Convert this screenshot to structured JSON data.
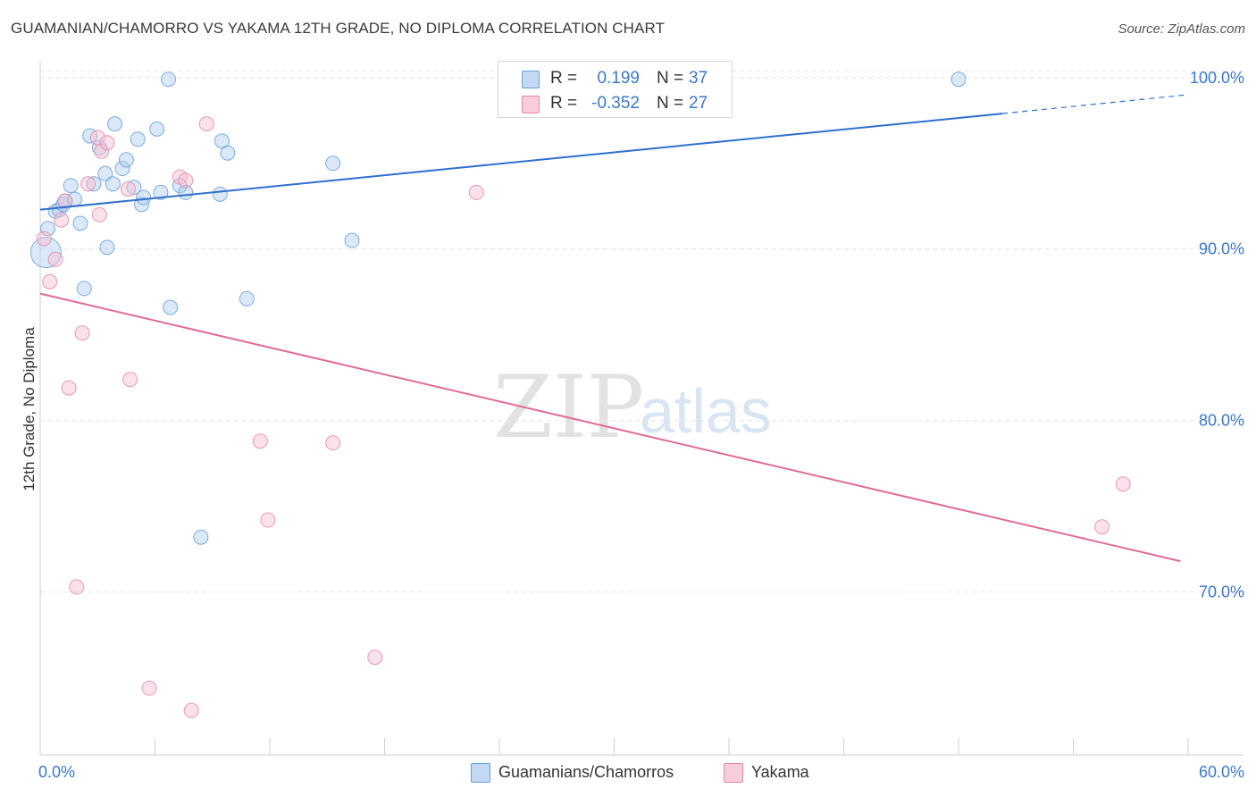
{
  "header": {
    "title": "GUAMANIAN/CHAMORRO VS YAKAMA 12TH GRADE, NO DIPLOMA CORRELATION CHART",
    "source": "Source: ZipAtlas.com"
  },
  "watermark": {
    "zip": "ZIP",
    "atlas": "atlas"
  },
  "legend": {
    "rows": [
      {
        "r_label": "R =",
        "r_value": "0.199",
        "n_label": "N =",
        "n_value": "37",
        "color": "#6a9fdc"
      },
      {
        "r_label": "R =",
        "r_value": "-0.352",
        "n_label": "N =",
        "n_value": "27",
        "color": "#e589a8"
      }
    ]
  },
  "bottom_legend": [
    {
      "label": "Guamanians/Chamorros",
      "color": "#6a9fdc"
    },
    {
      "label": "Yakama",
      "color": "#e589a8"
    }
  ],
  "chart_data": {
    "type": "scatter",
    "title": "GUAMANIAN/CHAMORRO VS YAKAMA 12TH GRADE, NO DIPLOMA CORRELATION CHART",
    "xlabel": "",
    "ylabel": "12th Grade, No Diploma",
    "xlim": [
      0,
      60
    ],
    "ylim": [
      60.5,
      101.5
    ],
    "x_tick_labels": [
      "0.0%",
      "60.0%"
    ],
    "y_ticks": [
      70,
      80,
      90,
      100
    ],
    "y_tick_labels": [
      "70.0%",
      "80.0%",
      "90.0%",
      "100.0%"
    ],
    "grid": true,
    "legend_position": "top-center",
    "series": [
      {
        "name": "Guamanians/Chamorros",
        "color": "#6a9fdc",
        "trend": {
          "x": [
            0,
            50.3
          ],
          "y": [
            92.3,
            97.9
          ],
          "dashed_to": [
            60,
            99.0
          ]
        },
        "points": [
          {
            "x": 0.3,
            "y": 89.8,
            "big": true
          },
          {
            "x": 0.4,
            "y": 91.2
          },
          {
            "x": 0.8,
            "y": 92.2
          },
          {
            "x": 1.0,
            "y": 92.3
          },
          {
            "x": 1.2,
            "y": 92.6
          },
          {
            "x": 1.3,
            "y": 92.8
          },
          {
            "x": 1.6,
            "y": 93.7
          },
          {
            "x": 1.8,
            "y": 92.9
          },
          {
            "x": 2.1,
            "y": 91.5
          },
          {
            "x": 2.3,
            "y": 87.7
          },
          {
            "x": 2.6,
            "y": 96.6
          },
          {
            "x": 2.8,
            "y": 93.8
          },
          {
            "x": 3.1,
            "y": 95.9
          },
          {
            "x": 3.4,
            "y": 94.4
          },
          {
            "x": 3.5,
            "y": 90.1
          },
          {
            "x": 3.8,
            "y": 93.8
          },
          {
            "x": 3.9,
            "y": 97.3
          },
          {
            "x": 4.3,
            "y": 94.7
          },
          {
            "x": 4.5,
            "y": 95.2
          },
          {
            "x": 4.9,
            "y": 93.6
          },
          {
            "x": 5.1,
            "y": 96.4
          },
          {
            "x": 5.3,
            "y": 92.6
          },
          {
            "x": 5.4,
            "y": 93.0
          },
          {
            "x": 6.1,
            "y": 97.0
          },
          {
            "x": 6.3,
            "y": 93.3
          },
          {
            "x": 6.7,
            "y": 99.9
          },
          {
            "x": 6.8,
            "y": 86.6
          },
          {
            "x": 7.3,
            "y": 93.7
          },
          {
            "x": 7.6,
            "y": 93.3
          },
          {
            "x": 8.4,
            "y": 73.2
          },
          {
            "x": 9.4,
            "y": 93.2
          },
          {
            "x": 9.5,
            "y": 96.3
          },
          {
            "x": 9.8,
            "y": 95.6
          },
          {
            "x": 10.8,
            "y": 87.1
          },
          {
            "x": 15.3,
            "y": 95.0
          },
          {
            "x": 16.3,
            "y": 90.5
          },
          {
            "x": 48.0,
            "y": 99.9
          }
        ]
      },
      {
        "name": "Yakama",
        "color": "#e589a8",
        "trend": {
          "x": [
            0,
            59.6
          ],
          "y": [
            87.4,
            71.8
          ]
        },
        "points": [
          {
            "x": 0.2,
            "y": 90.6
          },
          {
            "x": 0.5,
            "y": 88.1
          },
          {
            "x": 0.8,
            "y": 89.4
          },
          {
            "x": 1.1,
            "y": 91.7
          },
          {
            "x": 1.3,
            "y": 92.8
          },
          {
            "x": 1.9,
            "y": 70.3
          },
          {
            "x": 2.2,
            "y": 85.1
          },
          {
            "x": 1.5,
            "y": 81.9
          },
          {
            "x": 2.5,
            "y": 93.8
          },
          {
            "x": 3.0,
            "y": 96.5
          },
          {
            "x": 3.1,
            "y": 92.0
          },
          {
            "x": 3.2,
            "y": 95.7
          },
          {
            "x": 3.5,
            "y": 96.2
          },
          {
            "x": 4.6,
            "y": 93.5
          },
          {
            "x": 4.7,
            "y": 82.4
          },
          {
            "x": 5.7,
            "y": 64.4
          },
          {
            "x": 7.3,
            "y": 94.2
          },
          {
            "x": 7.6,
            "y": 94.0
          },
          {
            "x": 7.9,
            "y": 63.1
          },
          {
            "x": 8.7,
            "y": 97.3
          },
          {
            "x": 11.5,
            "y": 78.8
          },
          {
            "x": 11.9,
            "y": 74.2
          },
          {
            "x": 15.3,
            "y": 78.7
          },
          {
            "x": 17.5,
            "y": 66.2
          },
          {
            "x": 22.8,
            "y": 93.3
          },
          {
            "x": 55.5,
            "y": 73.8
          },
          {
            "x": 56.6,
            "y": 76.3
          }
        ]
      }
    ]
  }
}
